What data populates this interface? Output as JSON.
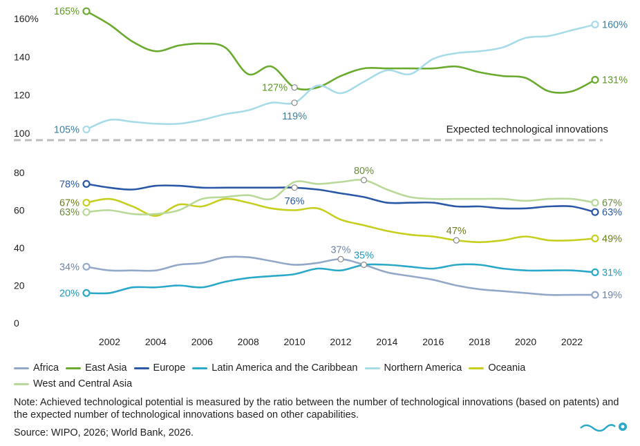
{
  "chart_data": [
    {
      "panel": "top",
      "type": "line",
      "annotation": "Expected technological innovations",
      "ylim": [
        100,
        165
      ],
      "yticks": [
        {
          "value": 100,
          "label": "100"
        },
        {
          "value": 120,
          "label": "120"
        },
        {
          "value": 140,
          "label": "140"
        },
        {
          "value": 160,
          "label": "160%"
        }
      ],
      "series": [
        {
          "name": "East Asia",
          "color": "#6aaa2e",
          "points": [
            [
              2001,
              164
            ],
            [
              2002,
              157
            ],
            [
              2003,
              148
            ],
            [
              2004,
              143
            ],
            [
              2005,
              146
            ],
            [
              2006,
              147
            ],
            [
              2007,
              145
            ],
            [
              2008,
              131
            ],
            [
              2009,
              135
            ],
            [
              2010,
              124
            ],
            [
              2011,
              124
            ],
            [
              2012,
              130
            ],
            [
              2013,
              134
            ],
            [
              2014,
              134
            ],
            [
              2015,
              134
            ],
            [
              2016,
              134
            ],
            [
              2017,
              135
            ],
            [
              2018,
              132
            ],
            [
              2019,
              130
            ],
            [
              2020,
              129
            ],
            [
              2021,
              122
            ],
            [
              2022,
              122
            ],
            [
              2023,
              128
            ]
          ],
          "markers": [
            {
              "x": 2001,
              "y": 164,
              "label": "165%",
              "pos": "left"
            },
            {
              "x": 2010,
              "y": 124,
              "label": "127%",
              "pos": "left"
            },
            {
              "x": 2023,
              "y": 128,
              "label": "131%",
              "pos": "right"
            }
          ]
        },
        {
          "name": "Northern America",
          "color": "#a8dbe8",
          "points": [
            [
              2001,
              102
            ],
            [
              2002,
              107
            ],
            [
              2003,
              106
            ],
            [
              2004,
              105
            ],
            [
              2005,
              105
            ],
            [
              2006,
              107
            ],
            [
              2007,
              110
            ],
            [
              2008,
              112
            ],
            [
              2009,
              116
            ],
            [
              2010,
              116
            ],
            [
              2011,
              125
            ],
            [
              2012,
              121
            ],
            [
              2013,
              127
            ],
            [
              2014,
              133
            ],
            [
              2015,
              131
            ],
            [
              2016,
              139
            ],
            [
              2017,
              142
            ],
            [
              2018,
              143
            ],
            [
              2019,
              145
            ],
            [
              2020,
              150
            ],
            [
              2021,
              151
            ],
            [
              2022,
              154
            ],
            [
              2023,
              157
            ]
          ],
          "markers": [
            {
              "x": 2001,
              "y": 102,
              "label": "105%",
              "pos": "left"
            },
            {
              "x": 2010,
              "y": 116,
              "label": "119%",
              "pos": "below"
            },
            {
              "x": 2023,
              "y": 157,
              "label": "160%",
              "pos": "right"
            }
          ]
        }
      ]
    },
    {
      "panel": "bottom",
      "type": "line",
      "ylim": [
        0,
        85
      ],
      "yticks": [
        {
          "value": 0,
          "label": "0"
        },
        {
          "value": 20,
          "label": "20"
        },
        {
          "value": 40,
          "label": "40"
        },
        {
          "value": 60,
          "label": "60"
        },
        {
          "value": 80,
          "label": "80"
        }
      ],
      "x": [
        2002,
        2004,
        2006,
        2008,
        2010,
        2012,
        2014,
        2016,
        2018,
        2020,
        2022
      ],
      "xlim": [
        2001,
        2023
      ],
      "series": [
        {
          "name": "Africa",
          "color": "#93a8c8",
          "points": [
            [
              2001,
              30
            ],
            [
              2002,
              28
            ],
            [
              2003,
              28
            ],
            [
              2004,
              28
            ],
            [
              2005,
              31
            ],
            [
              2006,
              32
            ],
            [
              2007,
              35
            ],
            [
              2008,
              35
            ],
            [
              2009,
              33
            ],
            [
              2010,
              31
            ],
            [
              2011,
              32
            ],
            [
              2012,
              34
            ],
            [
              2013,
              31
            ],
            [
              2014,
              27
            ],
            [
              2015,
              25
            ],
            [
              2016,
              23
            ],
            [
              2017,
              20
            ],
            [
              2018,
              18
            ],
            [
              2019,
              17
            ],
            [
              2020,
              16
            ],
            [
              2021,
              15
            ],
            [
              2022,
              15
            ],
            [
              2023,
              15
            ]
          ],
          "markers": [
            {
              "x": 2001,
              "y": 30,
              "label": "34%",
              "pos": "left"
            },
            {
              "x": 2012,
              "y": 34,
              "label": "37%",
              "pos": "above"
            },
            {
              "x": 2023,
              "y": 15,
              "label": "19%",
              "pos": "right"
            }
          ]
        },
        {
          "name": "East Asia",
          "color": "#6aaa2e",
          "points": [],
          "markers": []
        },
        {
          "name": "Europe",
          "color": "#2a58a6",
          "points": [
            [
              2001,
              74
            ],
            [
              2002,
              72
            ],
            [
              2003,
              71
            ],
            [
              2004,
              73
            ],
            [
              2005,
              73
            ],
            [
              2006,
              72
            ],
            [
              2007,
              72
            ],
            [
              2008,
              72
            ],
            [
              2009,
              72
            ],
            [
              2010,
              72
            ],
            [
              2011,
              71
            ],
            [
              2012,
              69
            ],
            [
              2013,
              67
            ],
            [
              2014,
              64
            ],
            [
              2015,
              64
            ],
            [
              2016,
              64
            ],
            [
              2017,
              62
            ],
            [
              2018,
              62
            ],
            [
              2019,
              61
            ],
            [
              2020,
              61
            ],
            [
              2021,
              62
            ],
            [
              2022,
              62
            ],
            [
              2023,
              59
            ]
          ],
          "markers": [
            {
              "x": 2001,
              "y": 74,
              "label": "78%",
              "pos": "left"
            },
            {
              "x": 2010,
              "y": 72,
              "label": "76%",
              "pos": "below"
            },
            {
              "x": 2023,
              "y": 59,
              "label": "63%",
              "pos": "right"
            }
          ]
        },
        {
          "name": "Latin America and the Caribbean",
          "color": "#2aa8c9",
          "points": [
            [
              2001,
              16
            ],
            [
              2002,
              16
            ],
            [
              2003,
              19
            ],
            [
              2004,
              19
            ],
            [
              2005,
              20
            ],
            [
              2006,
              19
            ],
            [
              2007,
              22
            ],
            [
              2008,
              24
            ],
            [
              2009,
              25
            ],
            [
              2010,
              26
            ],
            [
              2011,
              29
            ],
            [
              2012,
              28
            ],
            [
              2013,
              31
            ],
            [
              2014,
              31
            ],
            [
              2015,
              30
            ],
            [
              2016,
              29
            ],
            [
              2017,
              31
            ],
            [
              2018,
              31
            ],
            [
              2019,
              29
            ],
            [
              2020,
              28
            ],
            [
              2021,
              28
            ],
            [
              2022,
              28
            ],
            [
              2023,
              27
            ]
          ],
          "markers": [
            {
              "x": 2001,
              "y": 16,
              "label": "20%",
              "pos": "left"
            },
            {
              "x": 2013,
              "y": 31,
              "label": "35%",
              "pos": "above"
            },
            {
              "x": 2023,
              "y": 27,
              "label": "31%",
              "pos": "right"
            }
          ]
        },
        {
          "name": "Northern America",
          "color": "#a8dbe8",
          "points": [],
          "markers": []
        },
        {
          "name": "Oceania",
          "color": "#c6cf1e",
          "points": [
            [
              2001,
              64
            ],
            [
              2002,
              66
            ],
            [
              2003,
              62
            ],
            [
              2004,
              57
            ],
            [
              2005,
              63
            ],
            [
              2006,
              62
            ],
            [
              2007,
              66
            ],
            [
              2008,
              64
            ],
            [
              2009,
              61
            ],
            [
              2010,
              60
            ],
            [
              2011,
              61
            ],
            [
              2012,
              55
            ],
            [
              2013,
              52
            ],
            [
              2014,
              49
            ],
            [
              2015,
              47
            ],
            [
              2016,
              46
            ],
            [
              2017,
              44
            ],
            [
              2018,
              43
            ],
            [
              2019,
              44
            ],
            [
              2020,
              46
            ],
            [
              2021,
              44
            ],
            [
              2022,
              44
            ],
            [
              2023,
              45
            ]
          ],
          "markers": [
            {
              "x": 2001,
              "y": 64,
              "label": "67%",
              "pos": "left"
            },
            {
              "x": 2017,
              "y": 44,
              "label": "47%",
              "pos": "above"
            },
            {
              "x": 2023,
              "y": 45,
              "label": "49%",
              "pos": "right"
            }
          ]
        },
        {
          "name": "West and Central Asia",
          "color": "#b9d99a",
          "points": [
            [
              2001,
              59
            ],
            [
              2002,
              60
            ],
            [
              2003,
              58
            ],
            [
              2004,
              58
            ],
            [
              2005,
              60
            ],
            [
              2006,
              66
            ],
            [
              2007,
              67
            ],
            [
              2008,
              68
            ],
            [
              2009,
              66
            ],
            [
              2010,
              75
            ],
            [
              2011,
              74
            ],
            [
              2012,
              75
            ],
            [
              2013,
              76
            ],
            [
              2014,
              71
            ],
            [
              2015,
              67
            ],
            [
              2016,
              66
            ],
            [
              2017,
              66
            ],
            [
              2018,
              66
            ],
            [
              2019,
              66
            ],
            [
              2020,
              65
            ],
            [
              2021,
              66
            ],
            [
              2022,
              66
            ],
            [
              2023,
              64
            ]
          ],
          "markers": [
            {
              "x": 2001,
              "y": 59,
              "label": "63%",
              "pos": "left"
            },
            {
              "x": 2013,
              "y": 76,
              "label": "80%",
              "pos": "above"
            },
            {
              "x": 2023,
              "y": 64,
              "label": "67%",
              "pos": "right"
            }
          ]
        }
      ]
    }
  ],
  "legend": [
    {
      "label": "Africa",
      "color": "#93a8c8"
    },
    {
      "label": "East Asia",
      "color": "#6aaa2e"
    },
    {
      "label": "Europe",
      "color": "#2a58a6"
    },
    {
      "label": "Latin America and the Caribbean",
      "color": "#2aa8c9"
    },
    {
      "label": "Northern America",
      "color": "#a8dbe8"
    },
    {
      "label": "Oceania",
      "color": "#c6cf1e"
    },
    {
      "label": "West and Central Asia",
      "color": "#b9d99a"
    }
  ],
  "note": "Note: Achieved technological potential is measured by the ratio between the number of technological innovations (based on patents) and the expected number of technological innovations based on other capabilities.",
  "source": "Source: WIPO, 2026; World Bank, 2026."
}
